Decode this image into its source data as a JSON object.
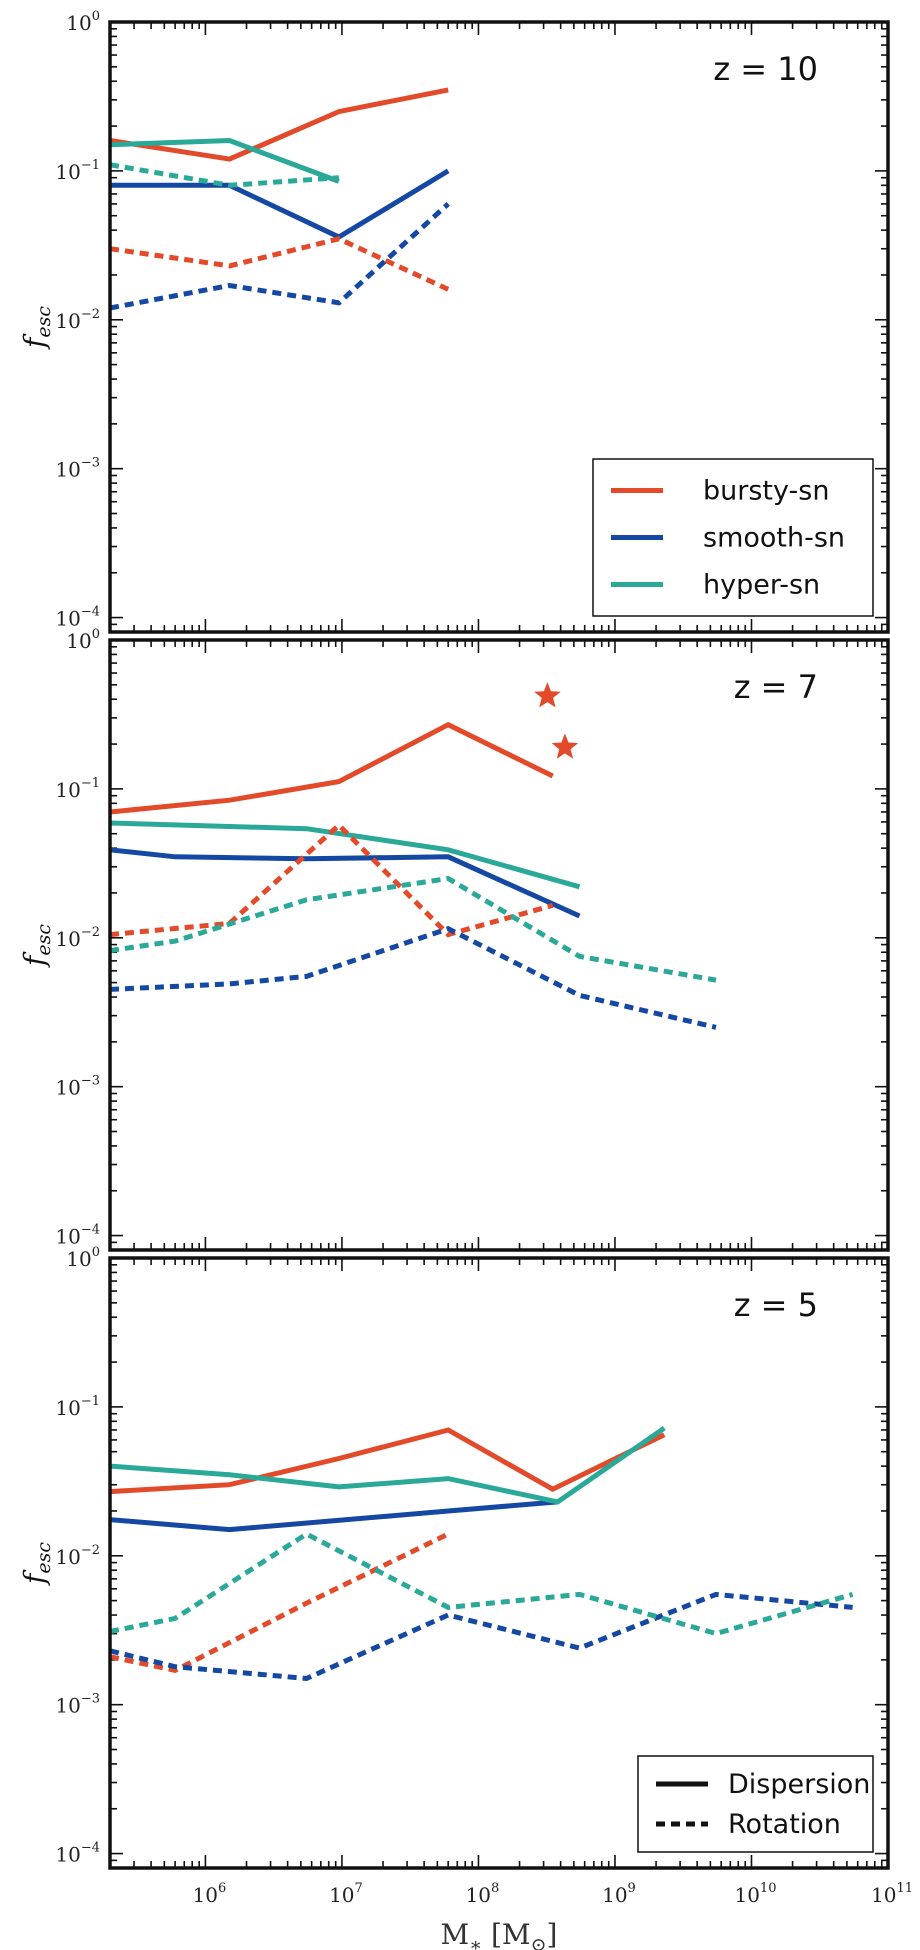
{
  "colors": {
    "bursty": "#e34a2a",
    "smooth": "#1448a3",
    "hyper": "#2aa898",
    "axis": "#111111"
  },
  "chart_data": [
    {
      "type": "line",
      "label": "z = 10",
      "ylabel": "f_esc",
      "xlabel": "",
      "xscale": "log",
      "yscale": "log",
      "xlim": [
        200000,
        100000000000
      ],
      "ylim": [
        8e-05,
        1
      ],
      "legend": {
        "placement": "bottom-right",
        "entries": [
          {
            "label": "bursty-sn",
            "color": "#e34a2a",
            "style": "solid"
          },
          {
            "label": "smooth-sn",
            "color": "#1448a3",
            "style": "solid"
          },
          {
            "label": "hyper-sn",
            "color": "#2aa898",
            "style": "solid"
          }
        ]
      },
      "series": [
        {
          "name": "bursty-sn",
          "style": "solid",
          "color": "#e34a2a",
          "x": [
            200000,
            1500000,
            9500000,
            60000000
          ],
          "y": [
            0.16,
            0.12,
            0.25,
            0.35
          ]
        },
        {
          "name": "smooth-sn",
          "style": "solid",
          "color": "#1448a3",
          "x": [
            200000,
            1500000,
            9500000,
            60000000
          ],
          "y": [
            0.08,
            0.08,
            0.036,
            0.1
          ]
        },
        {
          "name": "hyper-sn",
          "style": "solid",
          "color": "#2aa898",
          "x": [
            200000,
            1500000,
            9500000
          ],
          "y": [
            0.15,
            0.16,
            0.085
          ]
        },
        {
          "name": "bursty-sn",
          "style": "dashed",
          "color": "#e34a2a",
          "x": [
            200000,
            1500000,
            9500000,
            60000000
          ],
          "y": [
            0.03,
            0.023,
            0.035,
            0.016
          ]
        },
        {
          "name": "smooth-sn",
          "style": "dashed",
          "color": "#1448a3",
          "x": [
            200000,
            1500000,
            9500000,
            60000000
          ],
          "y": [
            0.012,
            0.017,
            0.013,
            0.06
          ]
        },
        {
          "name": "hyper-sn",
          "style": "dashed",
          "color": "#2aa898",
          "x": [
            200000,
            1500000,
            9500000
          ],
          "y": [
            0.11,
            0.08,
            0.09
          ]
        }
      ],
      "markers": []
    },
    {
      "type": "line",
      "label": "z = 7",
      "ylabel": "f_esc",
      "xlabel": "",
      "xscale": "log",
      "yscale": "log",
      "xlim": [
        200000,
        100000000000
      ],
      "ylim": [
        8e-05,
        1
      ],
      "legend": null,
      "series": [
        {
          "name": "bursty-sn",
          "style": "solid",
          "color": "#e34a2a",
          "x": [
            200000,
            1500000,
            9500000,
            60000000,
            350000000
          ],
          "y": [
            0.07,
            0.084,
            0.112,
            0.27,
            0.122
          ]
        },
        {
          "name": "smooth-sn",
          "style": "solid",
          "color": "#1448a3",
          "x": [
            200000,
            600000,
            5500000,
            60000000,
            550000000
          ],
          "y": [
            0.039,
            0.035,
            0.034,
            0.035,
            0.014
          ]
        },
        {
          "name": "hyper-sn",
          "style": "solid",
          "color": "#2aa898",
          "x": [
            200000,
            5500000,
            60000000,
            550000000
          ],
          "y": [
            0.059,
            0.054,
            0.039,
            0.022
          ]
        },
        {
          "name": "bursty-sn",
          "style": "dashed",
          "color": "#e34a2a",
          "x": [
            200000,
            1500000,
            9500000,
            60000000,
            350000000
          ],
          "y": [
            0.0105,
            0.0125,
            0.057,
            0.0105,
            0.0165
          ]
        },
        {
          "name": "smooth-sn",
          "style": "dashed",
          "color": "#1448a3",
          "x": [
            200000,
            1500000,
            5500000,
            60000000,
            550000000,
            5500000000
          ],
          "y": [
            0.0045,
            0.0049,
            0.0055,
            0.0115,
            0.0041,
            0.0025
          ]
        },
        {
          "name": "hyper-sn",
          "style": "dashed",
          "color": "#2aa898",
          "x": [
            200000,
            600000,
            5500000,
            60000000,
            550000000,
            5500000000
          ],
          "y": [
            0.0082,
            0.0095,
            0.018,
            0.025,
            0.0075,
            0.0052
          ]
        }
      ],
      "markers": [
        {
          "name": "bursty-sn",
          "shape": "star",
          "color": "#e34a2a",
          "x": 320000000,
          "y": 0.42
        },
        {
          "name": "bursty-sn",
          "shape": "star",
          "color": "#e34a2a",
          "x": 430000000,
          "y": 0.19
        }
      ]
    },
    {
      "type": "line",
      "label": "z = 5",
      "ylabel": "f_esc",
      "xlabel": "M_* [M_sun]",
      "xscale": "log",
      "yscale": "log",
      "xlim": [
        200000,
        100000000000
      ],
      "ylim": [
        8e-05,
        1
      ],
      "legend": {
        "placement": "bottom-right",
        "entries": [
          {
            "label": "Dispersion",
            "color": "#111111",
            "style": "solid"
          },
          {
            "label": "Rotation",
            "color": "#111111",
            "style": "dashed"
          }
        ]
      },
      "series": [
        {
          "name": "bursty-sn",
          "style": "solid",
          "color": "#e34a2a",
          "x": [
            200000,
            1500000,
            9500000,
            60000000,
            350000000,
            2300000000
          ],
          "y": [
            0.027,
            0.03,
            0.045,
            0.07,
            0.028,
            0.065
          ]
        },
        {
          "name": "smooth-sn",
          "style": "solid",
          "color": "#1448a3",
          "x": [
            200000,
            1500000,
            60000000,
            380000000
          ],
          "y": [
            0.0175,
            0.015,
            0.02,
            0.023
          ]
        },
        {
          "name": "hyper-sn",
          "style": "solid",
          "color": "#2aa898",
          "x": [
            200000,
            1500000,
            9500000,
            60000000,
            380000000,
            2300000000
          ],
          "y": [
            0.04,
            0.035,
            0.029,
            0.033,
            0.023,
            0.072
          ]
        },
        {
          "name": "bursty-sn",
          "style": "dashed",
          "color": "#e34a2a",
          "x": [
            200000,
            600000,
            5500000,
            60000000
          ],
          "y": [
            0.0021,
            0.0017,
            0.0048,
            0.014
          ]
        },
        {
          "name": "smooth-sn",
          "style": "dashed",
          "color": "#1448a3",
          "x": [
            200000,
            600000,
            5500000,
            60000000,
            550000000,
            5500000000,
            55000000000
          ],
          "y": [
            0.0023,
            0.0018,
            0.0015,
            0.004,
            0.0024,
            0.0055,
            0.0045
          ]
        },
        {
          "name": "hyper-sn",
          "style": "dashed",
          "color": "#2aa898",
          "x": [
            200000,
            600000,
            5500000,
            60000000,
            550000000,
            5500000000,
            55000000000
          ],
          "y": [
            0.0031,
            0.0038,
            0.014,
            0.0045,
            0.0055,
            0.003,
            0.0055
          ]
        }
      ],
      "markers": []
    }
  ],
  "axes": {
    "x_ticks": [
      {
        "base": "10",
        "exp": "6",
        "value": 1000000
      },
      {
        "base": "10",
        "exp": "7",
        "value": 10000000
      },
      {
        "base": "10",
        "exp": "8",
        "value": 100000000
      },
      {
        "base": "10",
        "exp": "9",
        "value": 1000000000
      },
      {
        "base": "10",
        "exp": "10",
        "value": 10000000000
      },
      {
        "base": "10",
        "exp": "11",
        "value": 100000000000
      }
    ],
    "y_ticks": [
      {
        "base": "10",
        "exp": "0",
        "value": 1
      },
      {
        "base": "10",
        "exp": "−1",
        "value": 0.1
      },
      {
        "base": "10",
        "exp": "−2",
        "value": 0.01
      },
      {
        "base": "10",
        "exp": "−3",
        "value": 0.001
      },
      {
        "base": "10",
        "exp": "−4",
        "value": 0.0001
      }
    ]
  }
}
